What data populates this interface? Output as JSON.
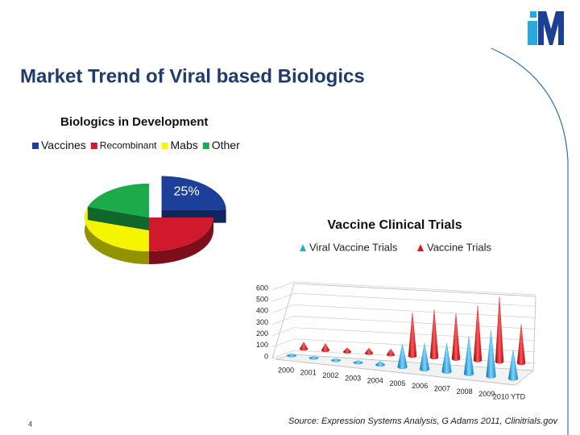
{
  "title": "Market Trend of Viral based Biologics",
  "page_number": 4,
  "source": "Source: Expression Systems Analysis, G Adams 2011,  Clinitrials.gov",
  "chart_data": [
    {
      "type": "pie",
      "title": "Biologics in Development",
      "categories": [
        "Vaccines",
        "Recombinant",
        "Mabs",
        "Other"
      ],
      "values": [
        25,
        25,
        30,
        20
      ],
      "value_labels": [
        "25%",
        null,
        null,
        null
      ],
      "colors": [
        "#1c3f9a",
        "#d0192d",
        "#f5f500",
        "#1daa4a"
      ],
      "exploded": [
        true,
        false,
        false,
        false
      ],
      "legend": "top"
    },
    {
      "type": "cone",
      "title": "Vaccine Clinical Trials",
      "categories": [
        "2000",
        "2001",
        "2002",
        "2003",
        "2004",
        "2005",
        "2006",
        "2007",
        "2008",
        "2009",
        "2010 YTD"
      ],
      "series": [
        {
          "name": "Viral Vaccine Trials",
          "color": "#2aa6e0",
          "values": [
            15,
            10,
            10,
            15,
            30,
            200,
            230,
            250,
            330,
            400,
            250
          ]
        },
        {
          "name": "Vaccine Trials",
          "color": "#e0141c",
          "values": [
            60,
            60,
            35,
            45,
            50,
            380,
            420,
            400,
            480,
            570,
            340
          ]
        }
      ],
      "ylim": [
        0,
        600
      ],
      "yticks": [
        0,
        100,
        200,
        300,
        400,
        500,
        600
      ],
      "grid": true,
      "legend": "top"
    }
  ]
}
